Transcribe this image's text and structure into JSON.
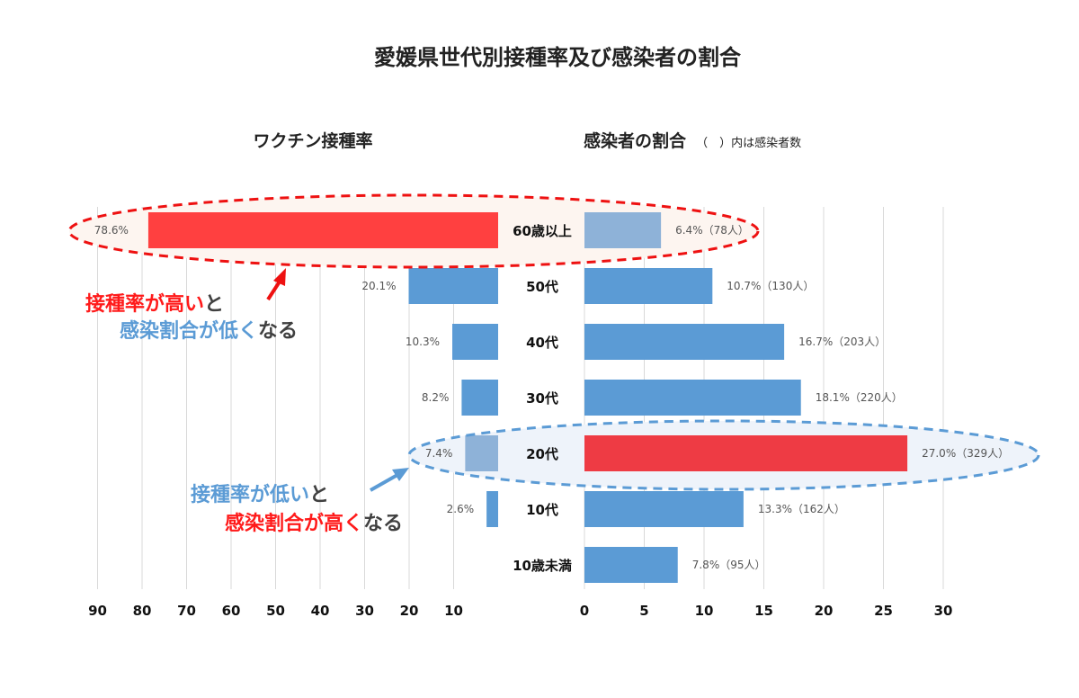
{
  "chart_data": [
    {
      "type": "bar",
      "orientation": "horizontal-reversed",
      "title": "ワクチン接種率",
      "categories": [
        "60歳以上",
        "50代",
        "40代",
        "30代",
        "20代",
        "10代",
        "10歳未満"
      ],
      "values": [
        78.6,
        20.1,
        10.3,
        8.2,
        7.4,
        2.6,
        null
      ],
      "labels": [
        "78.6%",
        "20.1%",
        "10.3%",
        "8.2%",
        "7.4%",
        "2.6%",
        ""
      ],
      "xlim": [
        0,
        90
      ],
      "ticks": [
        "10",
        "20",
        "30",
        "40",
        "50",
        "60",
        "70",
        "80",
        "90"
      ],
      "grid": true
    },
    {
      "type": "bar",
      "orientation": "horizontal",
      "title": "感染者の割合",
      "subtitle": "（　）内は感染者数",
      "categories": [
        "60歳以上",
        "50代",
        "40代",
        "30代",
        "20代",
        "10代",
        "10歳未満"
      ],
      "values": [
        6.4,
        10.7,
        16.7,
        18.1,
        27.0,
        13.3,
        7.8
      ],
      "counts": [
        78,
        130,
        203,
        220,
        329,
        162,
        95
      ],
      "labels": [
        "6.4%（78人）",
        "10.7%（130人）",
        "16.7%（203人）",
        "18.1%（220人）",
        "27.0%（329人）",
        "13.3%（162人）",
        "7.8%（95人）"
      ],
      "xlim": [
        0,
        30
      ],
      "ticks": [
        "0",
        "5",
        "10",
        "15",
        "20",
        "25",
        "30"
      ],
      "grid": true
    }
  ],
  "page": {
    "title": "愛媛県世代別接種率及び感染者の割合",
    "left_heading": "ワクチン接種率",
    "right_heading": "感染者の割合",
    "right_note": "（　）内は感染者数"
  },
  "annotations": {
    "top": [
      {
        "text": "接種率が高い",
        "color": "#ff1a1a"
      },
      {
        "text": "と",
        "color": "#404040"
      },
      {
        "text": "感染割合が低く",
        "color": "#5b9bd5"
      },
      {
        "text": "なる",
        "color": "#404040"
      }
    ],
    "bottom": [
      {
        "text": "接種率が低い",
        "color": "#5b9bd5"
      },
      {
        "text": "と",
        "color": "#404040"
      },
      {
        "text": "感染割合が高く",
        "color": "#ff1a1a"
      },
      {
        "text": "なる",
        "color": "#404040"
      }
    ]
  },
  "colors": {
    "bar_blue": "#5b9bd5",
    "bar_light_blue": "#8eb2d8",
    "bar_red_left": "#ff4040",
    "bar_red_right": "#ee3b44",
    "ellipse_red": "#ee1111",
    "ellipse_blue": "#5b9bd5",
    "ellipse_red_fill": "#fdf5f0",
    "ellipse_blue_fill": "#eef3fa"
  }
}
